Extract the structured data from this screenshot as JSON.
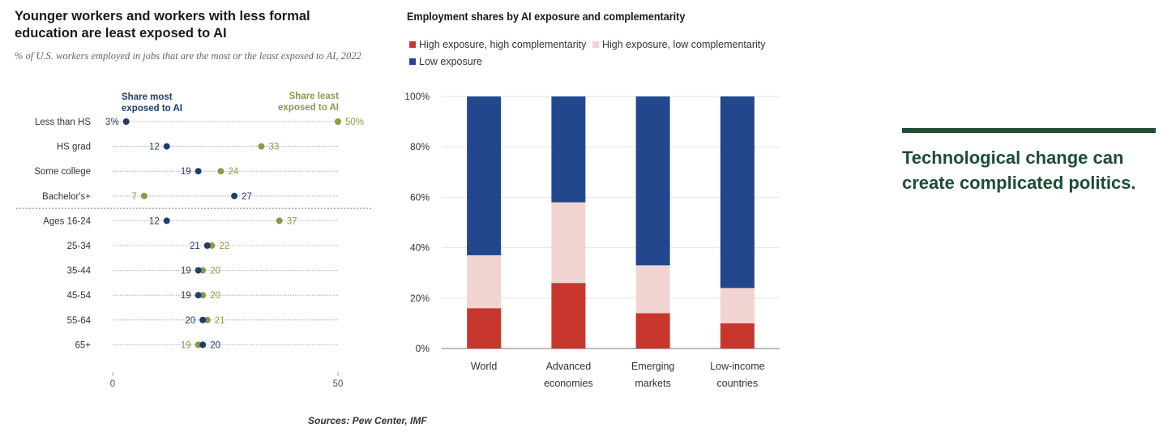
{
  "chart_data": [
    {
      "type": "scatter",
      "title": "Younger workers and workers with less formal education are least exposed to AI",
      "subtitle": "% of U.S. workers employed in jobs that are the most or the least exposed to AI, 2022",
      "series": [
        {
          "name": "Share most exposed to AI",
          "color": "#1f3c6e"
        },
        {
          "name": "Share least exposed to AI",
          "color": "#8a9a45"
        }
      ],
      "rows": [
        {
          "label": "Less than HS",
          "most": 3,
          "least": 50,
          "most_label": "3%",
          "least_label": "50%"
        },
        {
          "label": "HS grad",
          "most": 12,
          "least": 33,
          "most_label": "12",
          "least_label": "33"
        },
        {
          "label": "Some college",
          "most": 19,
          "least": 24,
          "most_label": "19",
          "least_label": "24"
        },
        {
          "label": "Bachelor's+",
          "most": 27,
          "least": 7,
          "most_label": "27",
          "least_label": "7"
        },
        {
          "label": "Ages 16-24",
          "most": 12,
          "least": 37,
          "most_label": "12",
          "least_label": "37"
        },
        {
          "label": "25-34",
          "most": 21,
          "least": 22,
          "most_label": "21",
          "least_label": "22"
        },
        {
          "label": "35-44",
          "most": 19,
          "least": 20,
          "most_label": "19",
          "least_label": "20"
        },
        {
          "label": "45-54",
          "most": 19,
          "least": 20,
          "most_label": "19",
          "least_label": "20"
        },
        {
          "label": "55-64",
          "most": 20,
          "least": 21,
          "most_label": "20",
          "least_label": "21"
        },
        {
          "label": "65+",
          "most": 20,
          "least": 19,
          "most_label": "20",
          "least_label": "19"
        }
      ],
      "xlim": [
        0,
        50
      ],
      "xticks": [
        "0",
        "50"
      ]
    },
    {
      "type": "bar",
      "stacked": true,
      "title": "Employment shares by AI exposure and complementarity",
      "categories": [
        [
          "World"
        ],
        [
          "Advanced",
          "economies"
        ],
        [
          "Emerging",
          "markets"
        ],
        [
          "Low-income",
          "countries"
        ]
      ],
      "series": [
        {
          "name": "High exposure, high complementarity",
          "color": "#c8372d",
          "values": [
            16,
            26,
            14,
            10
          ]
        },
        {
          "name": "High exposure, low complementarity",
          "color": "#f2d4d3",
          "values": [
            21,
            32,
            19,
            14
          ]
        },
        {
          "name": "Low exposure",
          "color": "#23478c",
          "values": [
            63,
            42,
            67,
            76
          ]
        }
      ],
      "ylim": [
        0,
        100
      ],
      "yticks": [
        "0%",
        "20%",
        "40%",
        "60%",
        "80%",
        "100%"
      ],
      "grid": true,
      "legend": "top-left"
    }
  ],
  "callout": "Technological change can create complicated politics.",
  "sources": "Sources: Pew Center, IMF"
}
